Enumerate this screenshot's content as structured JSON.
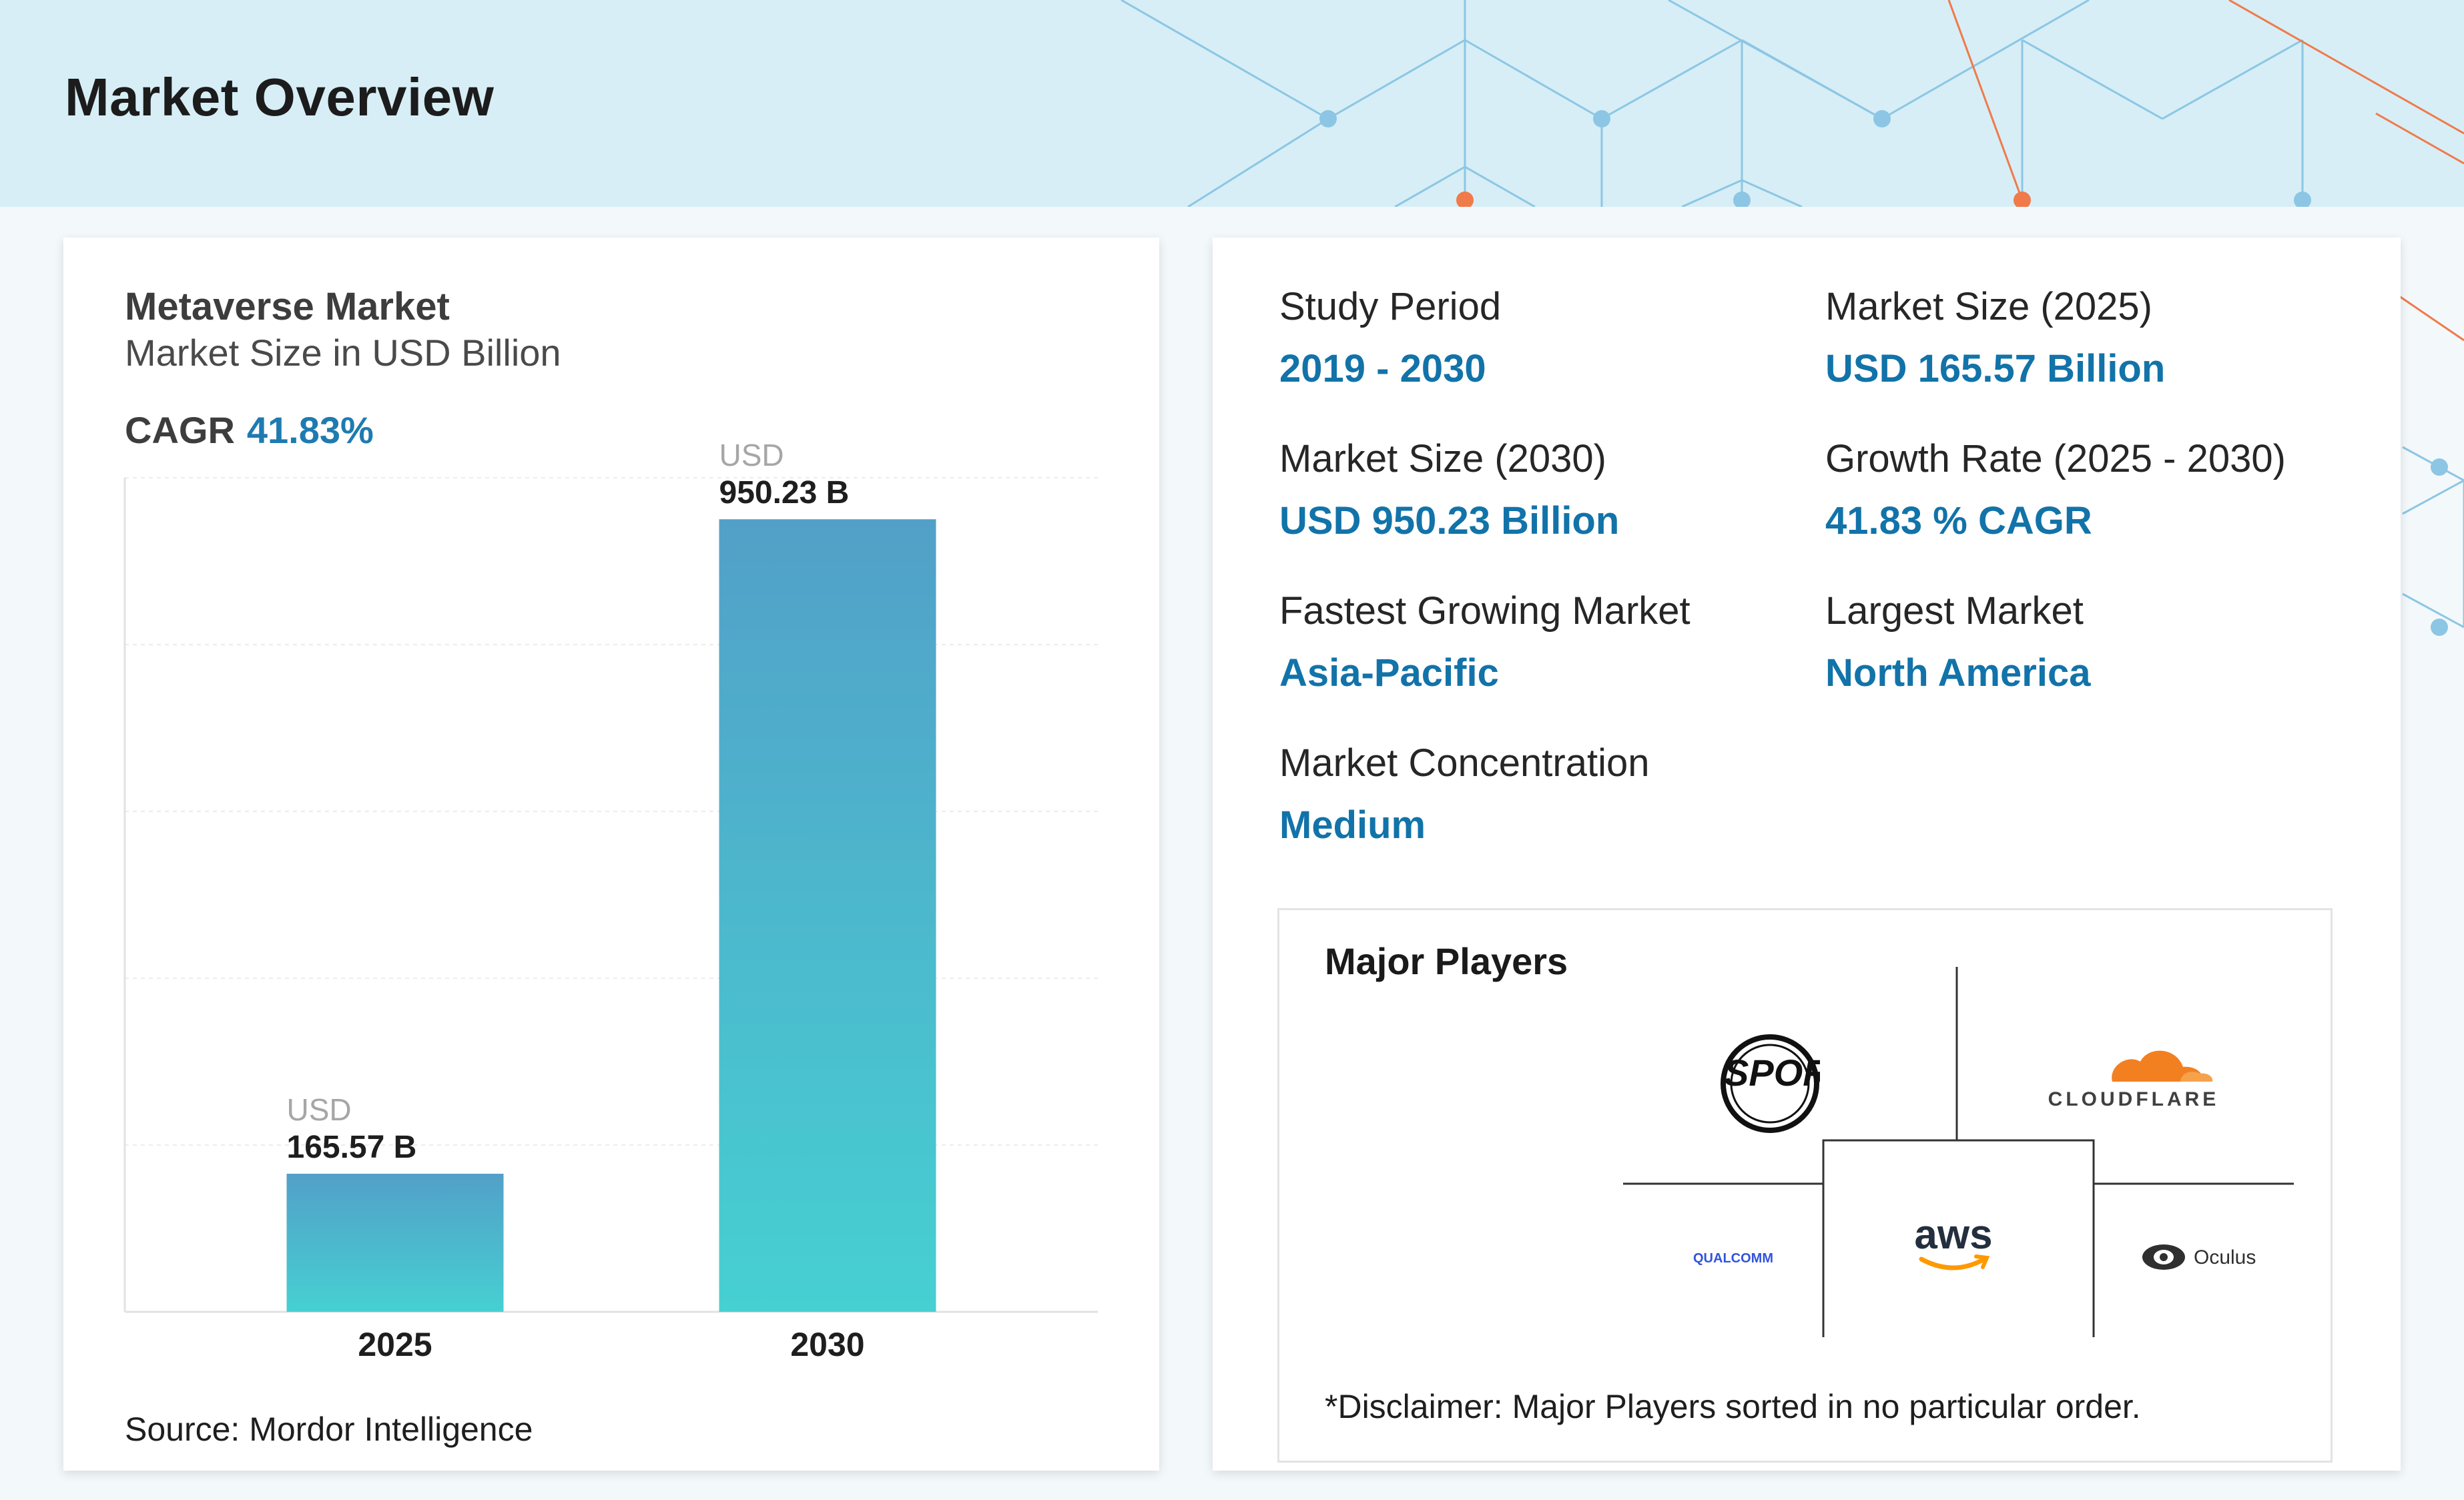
{
  "header": {
    "title": "Market Overview"
  },
  "chart_card": {
    "title": "Metaverse Market",
    "subtitle": "Market Size in USD Billion",
    "cagr_label": "CAGR",
    "cagr_value": "41.83%",
    "source": "Source: Mordor Intelligence"
  },
  "chart_data": {
    "type": "bar",
    "categories": [
      "2025",
      "2030"
    ],
    "values": [
      165.57,
      950.23
    ],
    "value_prefix": "USD",
    "value_labels": [
      "165.57 B",
      "950.23 B"
    ],
    "ylim": [
      0,
      1000
    ],
    "grid": true,
    "colors": {
      "bar_top": "#52a0c8",
      "bar_bottom": "#46d0d2"
    }
  },
  "stats": [
    {
      "label": "Study Period",
      "value": "2019 - 2030"
    },
    {
      "label": "Market Size (2025)",
      "value": "USD 165.57 Billion"
    },
    {
      "label": "Market Size (2030)",
      "value": "USD 950.23 Billion"
    },
    {
      "label": "Growth Rate (2025 - 2030)",
      "value": "41.83 % CAGR"
    },
    {
      "label": "Fastest Growing Market",
      "value": "Asia-Pacific"
    },
    {
      "label": "Largest Market",
      "value": "North America"
    },
    {
      "label": "Market Concentration",
      "value": "Medium"
    }
  ],
  "players": {
    "title": "Major Players",
    "logos": [
      {
        "name": "ea-sports-logo",
        "text": "EA SPORTS"
      },
      {
        "name": "cloudflare-logo",
        "text": "CLOUDFLARE"
      },
      {
        "name": "aws-logo",
        "text": "aws"
      },
      {
        "name": "qualcomm-logo",
        "text": "QUALCOMM"
      },
      {
        "name": "oculus-logo",
        "text": "Oculus"
      }
    ],
    "disclaimer": "*Disclaimer: Major Players sorted in no particular order."
  },
  "colors": {
    "accent": "#1273a9",
    "header_bg": "#d7eef6",
    "network_blue": "#8cc6e4",
    "network_orange": "#f07a4a"
  }
}
